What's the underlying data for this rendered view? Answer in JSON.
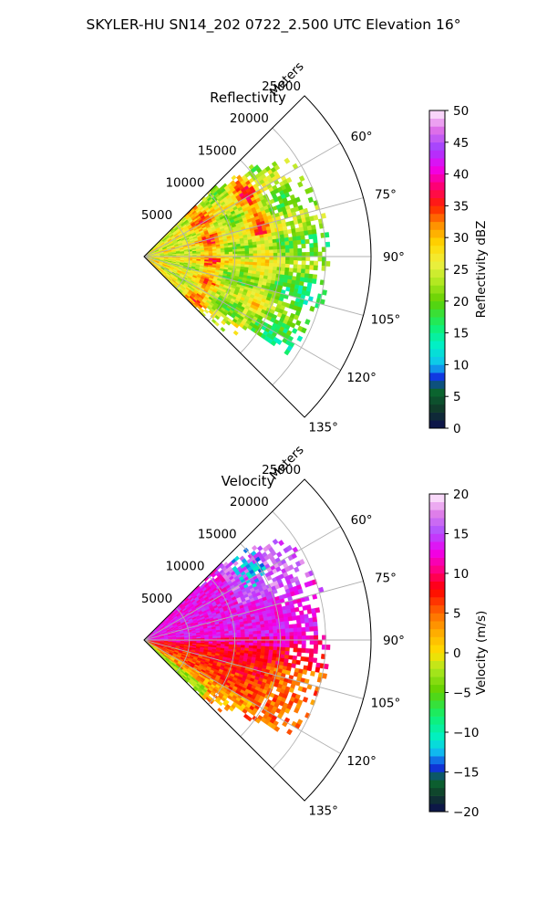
{
  "figure": {
    "title": "SKYLER-HU  SN14_202  0722_2.500 UTC Elevation 16°"
  },
  "chart_data": [
    {
      "type": "heatmap",
      "subtype": "polar-sector",
      "title": "Reflectivity",
      "radial_label": "Meters",
      "radial_ticks": [
        5000,
        10000,
        15000,
        20000,
        25000
      ],
      "radial_tick_labels": [
        "5000",
        "10000",
        "15000",
        "20000",
        "25000"
      ],
      "rmax": 25000,
      "theta_range_deg": [
        45,
        135
      ],
      "theta_ticks_deg": [
        60,
        75,
        90,
        105,
        120,
        135
      ],
      "theta_tick_labels": [
        "60°",
        "75°",
        "90°",
        "105°",
        "120°",
        "135°"
      ],
      "grid": true,
      "colorbar": {
        "label": "Reflectivity dBZ",
        "range": [
          0,
          50
        ],
        "ticks": [
          0,
          5,
          10,
          15,
          20,
          25,
          30,
          35,
          40,
          45,
          50
        ],
        "tick_labels": [
          "0",
          "5",
          "10",
          "15",
          "20",
          "25",
          "30",
          "35",
          "40",
          "45",
          "50"
        ],
        "colormap": "pyart_HomeyerRainbow"
      }
    },
    {
      "type": "heatmap",
      "subtype": "polar-sector",
      "title": "Velocity",
      "radial_label": "Meters",
      "radial_ticks": [
        5000,
        10000,
        15000,
        20000,
        25000
      ],
      "radial_tick_labels": [
        "5000",
        "10000",
        "15000",
        "20000",
        "25000"
      ],
      "rmax": 25000,
      "theta_range_deg": [
        45,
        135
      ],
      "theta_ticks_deg": [
        60,
        75,
        90,
        105,
        120,
        135
      ],
      "theta_tick_labels": [
        "60°",
        "75°",
        "90°",
        "105°",
        "120°",
        "135°"
      ],
      "grid": true,
      "colorbar": {
        "label": "Velocity (m/s)",
        "range": [
          -20,
          20
        ],
        "ticks": [
          -20,
          -15,
          -10,
          -5,
          0,
          5,
          10,
          15,
          20
        ],
        "tick_labels": [
          "−20",
          "−15",
          "−10",
          "−5",
          "0",
          "5",
          "10",
          "15",
          "20"
        ],
        "colormap": "pyart_BuDRd18"
      }
    }
  ]
}
